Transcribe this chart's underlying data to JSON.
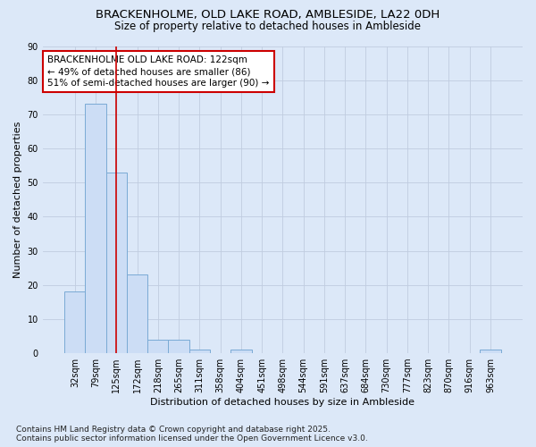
{
  "title1": "BRACKENHOLME, OLD LAKE ROAD, AMBLESIDE, LA22 0DH",
  "title2": "Size of property relative to detached houses in Ambleside",
  "xlabel": "Distribution of detached houses by size in Ambleside",
  "ylabel": "Number of detached properties",
  "categories": [
    "32sqm",
    "79sqm",
    "125sqm",
    "172sqm",
    "218sqm",
    "265sqm",
    "311sqm",
    "358sqm",
    "404sqm",
    "451sqm",
    "498sqm",
    "544sqm",
    "591sqm",
    "637sqm",
    "684sqm",
    "730sqm",
    "777sqm",
    "823sqm",
    "870sqm",
    "916sqm",
    "963sqm"
  ],
  "values": [
    18,
    73,
    53,
    23,
    4,
    4,
    1,
    0,
    1,
    0,
    0,
    0,
    0,
    0,
    0,
    0,
    0,
    0,
    0,
    0,
    1
  ],
  "bar_color": "#ccddf5",
  "bar_edge_color": "#7aaad4",
  "red_line_x": 2,
  "annotation_text": "BRACKENHOLME OLD LAKE ROAD: 122sqm\n← 49% of detached houses are smaller (86)\n51% of semi-detached houses are larger (90) →",
  "annotation_box_color": "#ffffff",
  "annotation_box_edge": "#cc0000",
  "red_line_color": "#cc0000",
  "ylim": [
    0,
    90
  ],
  "yticks": [
    0,
    10,
    20,
    30,
    40,
    50,
    60,
    70,
    80,
    90
  ],
  "grid_color": "#c0cce0",
  "bg_color": "#dce8f8",
  "fig_bg_color": "#dce8f8",
  "footer": "Contains HM Land Registry data © Crown copyright and database right 2025.\nContains public sector information licensed under the Open Government Licence v3.0.",
  "title_fontsize": 9.5,
  "subtitle_fontsize": 8.5,
  "axis_label_fontsize": 8,
  "tick_fontsize": 7,
  "footer_fontsize": 6.5,
  "ann_fontsize": 7.5
}
